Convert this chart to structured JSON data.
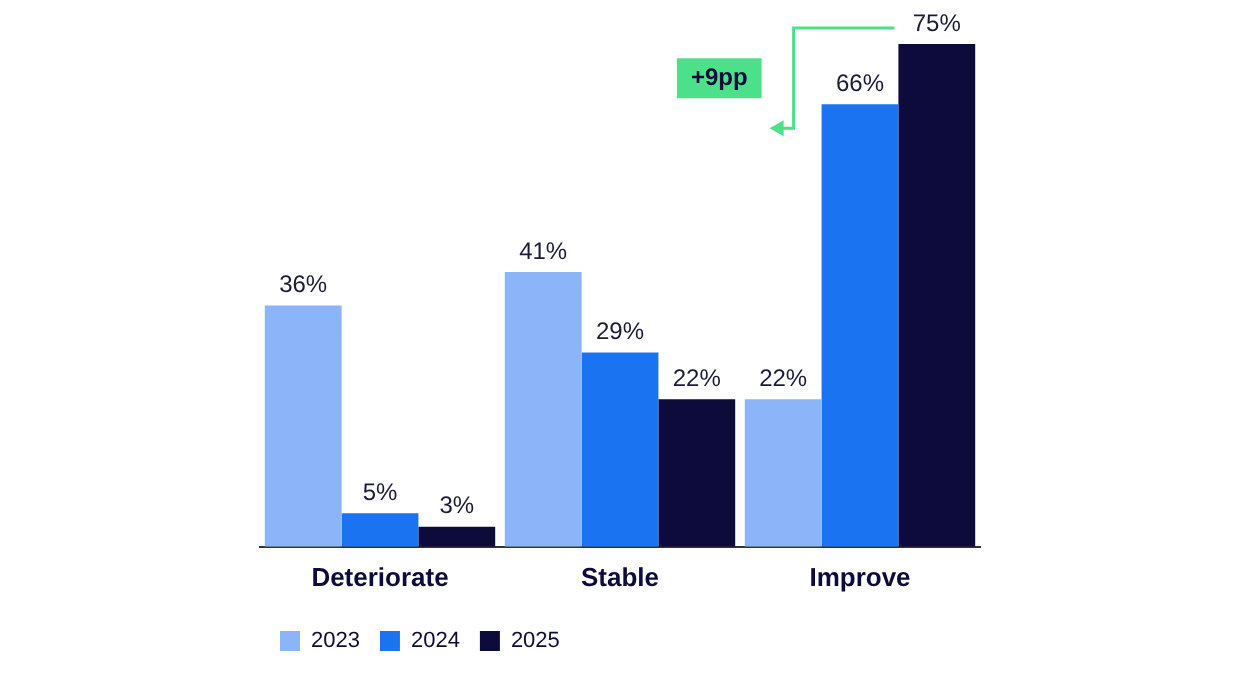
{
  "chart_data": {
    "type": "bar",
    "categories": [
      "Deteriorate",
      "Stable",
      "Improve"
    ],
    "series": [
      {
        "name": "2023",
        "color": "#8cb4f8",
        "values": [
          36,
          41,
          22
        ],
        "value_labels": [
          "36%",
          "41%",
          "22%"
        ]
      },
      {
        "name": "2024",
        "color": "#1a73f0",
        "values": [
          5,
          29,
          66
        ],
        "value_labels": [
          "5%",
          "29%",
          "66%"
        ]
      },
      {
        "name": "2025",
        "color": "#0d0a3c",
        "values": [
          3,
          22,
          75
        ],
        "value_labels": [
          "3%",
          "22%",
          "75%"
        ]
      }
    ],
    "legend": "bottom left",
    "grid": false,
    "annotations": [
      "+9pp"
    ]
  }
}
